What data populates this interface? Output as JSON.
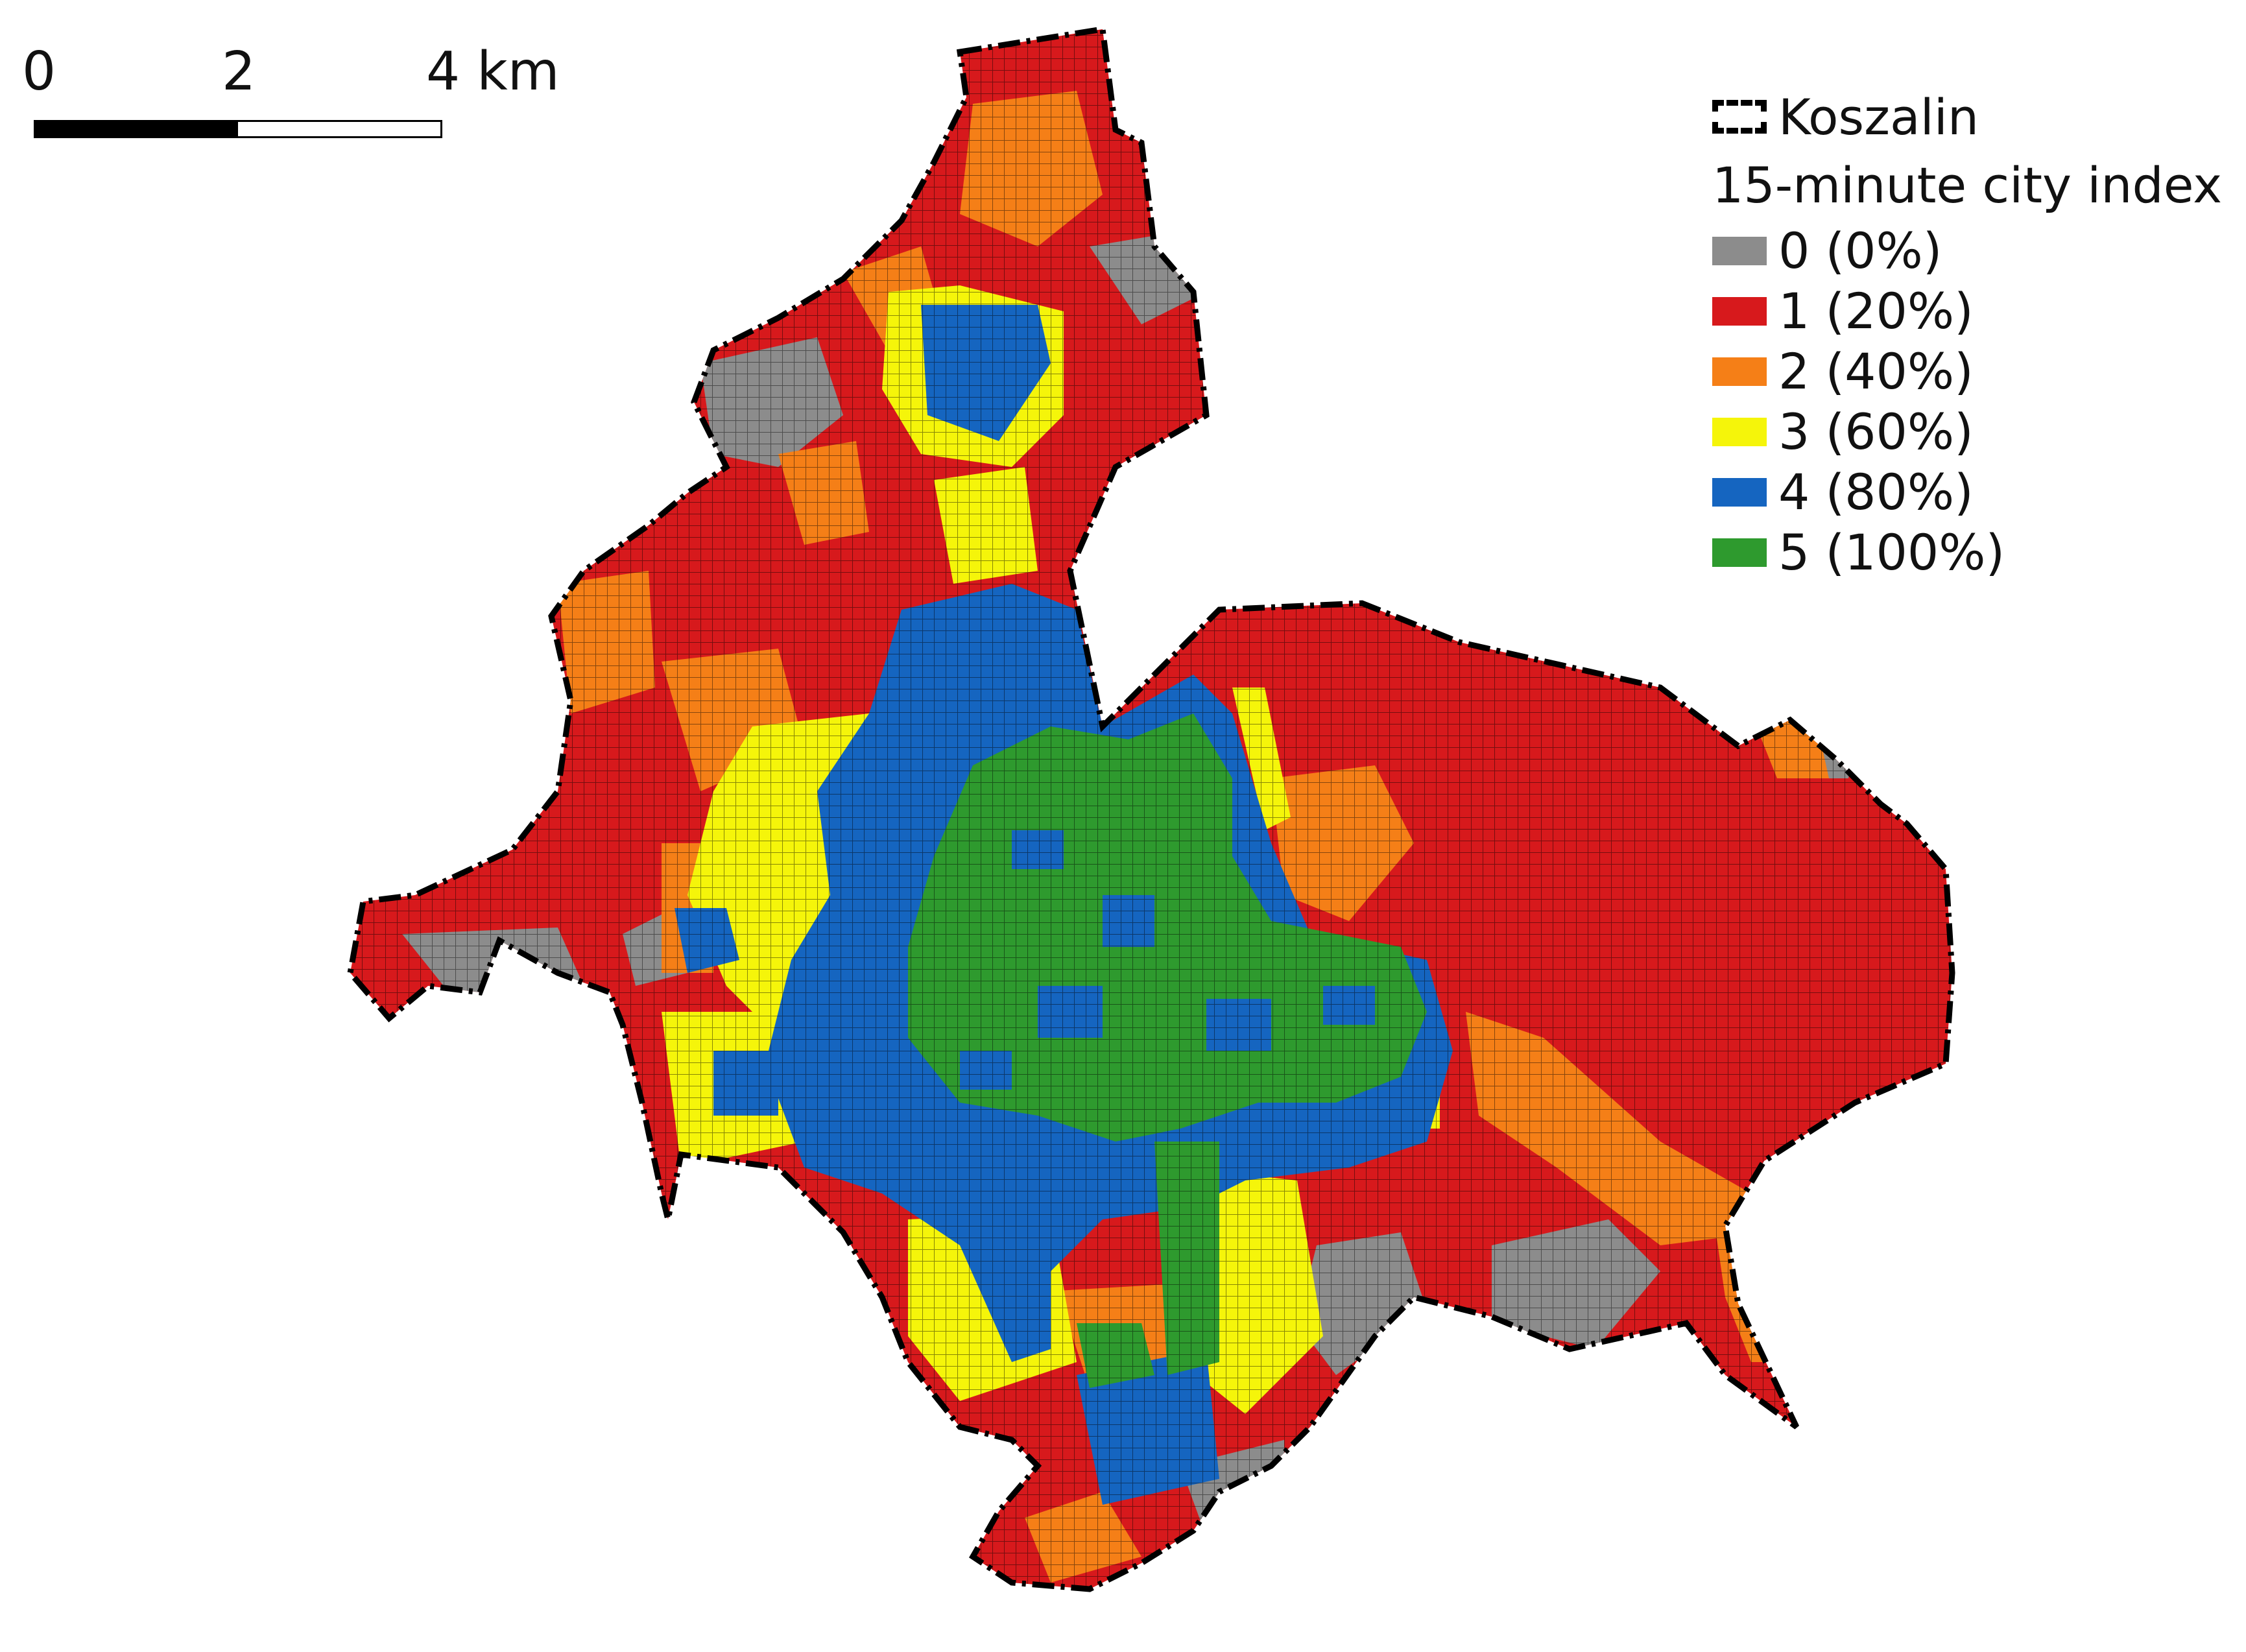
{
  "scale_bar": {
    "ticks": [
      "0",
      "2",
      "4 km"
    ]
  },
  "legend": {
    "boundary_label": "Koszalin",
    "title": "15-minute city index",
    "classes": [
      {
        "label": "0 (0%)",
        "color": "#8c8c8c"
      },
      {
        "label": "1 (20%)",
        "color": "#d7191c"
      },
      {
        "label": "2 (40%)",
        "color": "#f57f17"
      },
      {
        "label": "3 (60%)",
        "color": "#f5f50a"
      },
      {
        "label": "4 (80%)",
        "color": "#1565c0"
      },
      {
        "label": "5 (100%)",
        "color": "#2e9a2e"
      }
    ]
  }
}
